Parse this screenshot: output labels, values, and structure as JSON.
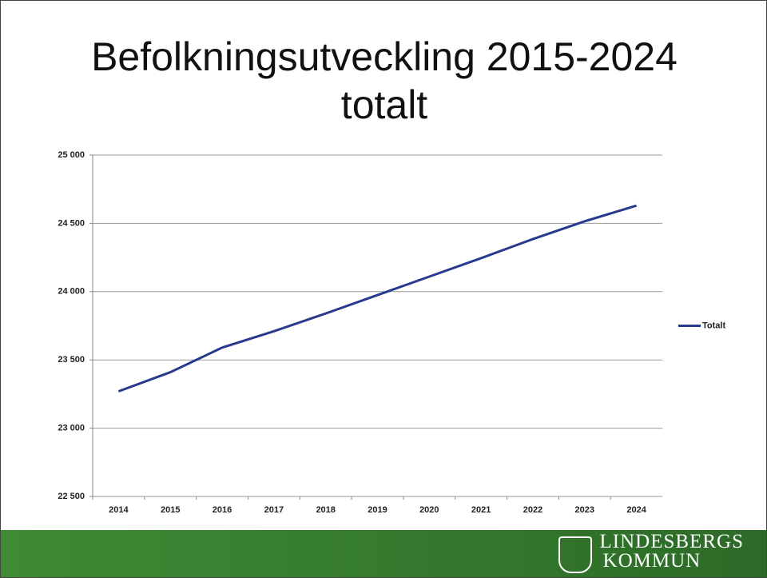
{
  "chart_data": {
    "type": "line",
    "title": "Befolkningsutveckling 2015-2024 totalt",
    "categories": [
      "2014",
      "2015",
      "2016",
      "2017",
      "2018",
      "2019",
      "2020",
      "2021",
      "2022",
      "2023",
      "2024"
    ],
    "series": [
      {
        "name": "Totalt",
        "color": "#283a8e",
        "values": [
          23270,
          23410,
          23590,
          23710,
          23840,
          23975,
          24110,
          24245,
          24385,
          24515,
          24630
        ]
      }
    ],
    "ylim": [
      22500,
      25000
    ],
    "yticks": [
      {
        "value": 22500,
        "label": "22 500"
      },
      {
        "value": 23000,
        "label": "23 000"
      },
      {
        "value": 23500,
        "label": "23 500"
      },
      {
        "value": 24000,
        "label": "24 000"
      },
      {
        "value": 24500,
        "label": "24 500"
      },
      {
        "value": 25000,
        "label": "25 000"
      }
    ],
    "grid": true,
    "legend": "right"
  },
  "footer": {
    "logo": [
      "LINDESBERGS",
      "KOMMUN"
    ]
  }
}
